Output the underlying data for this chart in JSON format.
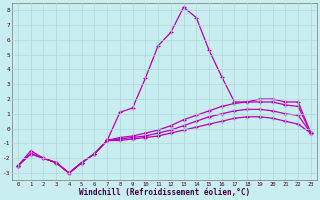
{
  "xlabel": "Windchill (Refroidissement éolien,°C)",
  "x_ticks": [
    0,
    1,
    2,
    3,
    4,
    5,
    6,
    7,
    8,
    9,
    10,
    11,
    12,
    13,
    14,
    15,
    16,
    17,
    18,
    19,
    20,
    21,
    22,
    23
  ],
  "y_ticks": [
    -3,
    -2,
    -1,
    0,
    1,
    2,
    3,
    4,
    5,
    6,
    7,
    8
  ],
  "ylim": [
    -3.5,
    8.5
  ],
  "xlim": [
    -0.5,
    23.5
  ],
  "background_color": "#c8eef0",
  "grid_color": "#b0d8da",
  "line_color": "#bb00bb",
  "line1": [
    -2.5,
    -1.5,
    -2.0,
    -2.3,
    -3.0,
    -2.3,
    -1.7,
    -0.8,
    1.1,
    1.4,
    3.4,
    5.6,
    6.5,
    8.2,
    7.5,
    5.3,
    3.5,
    1.8,
    1.8,
    2.0,
    2.0,
    1.8,
    1.8,
    -0.3
  ],
  "line2": [
    -2.5,
    -1.7,
    -2.0,
    -2.3,
    -3.0,
    -2.3,
    -1.7,
    -0.8,
    -0.6,
    -0.5,
    -0.3,
    -0.1,
    0.2,
    0.6,
    0.9,
    1.2,
    1.5,
    1.7,
    1.8,
    1.8,
    1.8,
    1.6,
    1.5,
    -0.3
  ],
  "line3": [
    -2.5,
    -1.7,
    -2.0,
    -2.3,
    -3.0,
    -2.3,
    -1.7,
    -0.8,
    -0.7,
    -0.6,
    -0.5,
    -0.3,
    -0.1,
    0.2,
    0.5,
    0.8,
    1.0,
    1.2,
    1.3,
    1.3,
    1.2,
    1.0,
    0.9,
    -0.3
  ],
  "line4": [
    -2.5,
    -1.7,
    -2.0,
    -2.3,
    -3.0,
    -2.3,
    -1.7,
    -0.8,
    -0.8,
    -0.7,
    -0.6,
    -0.5,
    -0.3,
    -0.1,
    0.1,
    0.3,
    0.5,
    0.7,
    0.8,
    0.8,
    0.7,
    0.5,
    0.3,
    -0.3
  ]
}
